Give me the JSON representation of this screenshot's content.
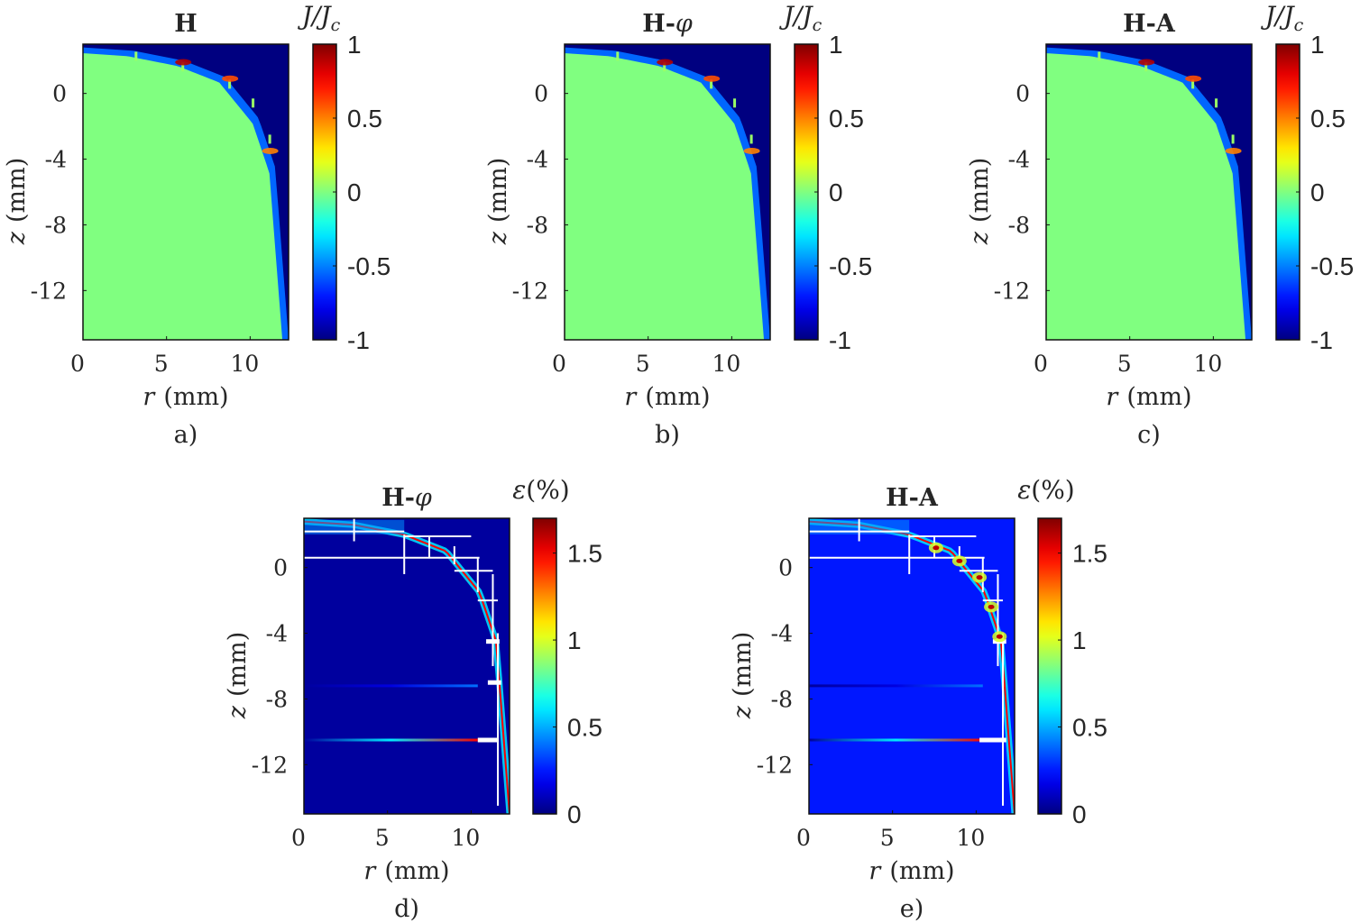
{
  "chart_data": [
    {
      "type": "heatmap",
      "panel": "a)",
      "title": "H",
      "xlabel_var": "r",
      "xlabel_unit": "(mm)",
      "ylabel_var": "z",
      "ylabel_unit": "(mm)",
      "xlim": [
        0,
        12.3
      ],
      "ylim": [
        -15,
        3
      ],
      "xticks": [
        0,
        5,
        10
      ],
      "yticks": [
        0,
        -4,
        -8,
        -12
      ],
      "colorbar_label": "J/Jc",
      "clim": [
        -1,
        1
      ],
      "cbticks": [
        "1",
        "0.5",
        "0",
        "-0.5",
        "-1"
      ],
      "colormap": "jet",
      "field": "current density; interior ≈ 0, saturated -1 along outer curved edge, small positive peaks at step corners",
      "profile_r": [
        0,
        3,
        6,
        8.5,
        10.5,
        11.5,
        12.3
      ],
      "profile_z": [
        2.8,
        2.6,
        2.0,
        1.0,
        -1.5,
        -4.5,
        -15
      ],
      "hot_spots": [
        {
          "r": 6.0,
          "z": 1.9,
          "value": 0.9
        },
        {
          "r": 8.8,
          "z": 0.9,
          "value": 0.6
        },
        {
          "r": 11.2,
          "z": -3.5,
          "value": 0.5
        }
      ]
    },
    {
      "type": "heatmap",
      "panel": "b)",
      "title": "H-φ",
      "title_base": "H-",
      "title_sym": "φ",
      "xlabel_var": "r",
      "xlabel_unit": "(mm)",
      "ylabel_var": "z",
      "ylabel_unit": "(mm)",
      "xlim": [
        0,
        12.3
      ],
      "ylim": [
        -15,
        3
      ],
      "xticks": [
        0,
        5,
        10
      ],
      "yticks": [
        0,
        -4,
        -8,
        -12
      ],
      "colorbar_label": "J/Jc",
      "clim": [
        -1,
        1
      ],
      "cbticks": [
        "1",
        "0.5",
        "0",
        "-0.5",
        "-1"
      ],
      "colormap": "jet",
      "field": "current density; interior ≈ 0, saturated -1 along outer curved edge",
      "profile_r": [
        0,
        3,
        6,
        8.5,
        10.5,
        11.5,
        12.3
      ],
      "profile_z": [
        2.8,
        2.6,
        2.0,
        1.0,
        -1.5,
        -4.5,
        -15
      ],
      "hot_spots": [
        {
          "r": 6.0,
          "z": 1.9,
          "value": 0.9
        },
        {
          "r": 8.8,
          "z": 0.9,
          "value": 0.6
        },
        {
          "r": 11.2,
          "z": -3.5,
          "value": 0.5
        }
      ]
    },
    {
      "type": "heatmap",
      "panel": "c)",
      "title": "H-A",
      "xlabel_var": "r",
      "xlabel_unit": "(mm)",
      "ylabel_var": "z",
      "ylabel_unit": "(mm)",
      "xlim": [
        0,
        12.3
      ],
      "ylim": [
        -15,
        3
      ],
      "xticks": [
        0,
        5,
        10
      ],
      "yticks": [
        0,
        -4,
        -8,
        -12
      ],
      "colorbar_label": "J/Jc",
      "clim": [
        -1,
        1
      ],
      "cbticks": [
        "1",
        "0.5",
        "0",
        "-0.5",
        "-1"
      ],
      "colormap": "jet",
      "field": "current density; interior ≈ 0, saturated -1 along outer curved edge",
      "profile_r": [
        0,
        3,
        6,
        8.5,
        10.5,
        11.5,
        12.3
      ],
      "profile_z": [
        2.8,
        2.6,
        2.0,
        1.0,
        -1.5,
        -4.5,
        -15
      ],
      "hot_spots": [
        {
          "r": 6.0,
          "z": 1.9,
          "value": 0.9
        },
        {
          "r": 8.8,
          "z": 0.9,
          "value": 0.6
        },
        {
          "r": 11.2,
          "z": -3.5,
          "value": 0.5
        }
      ]
    },
    {
      "type": "heatmap",
      "panel": "d)",
      "title": "H-φ",
      "title_base": "H-",
      "title_sym": "φ",
      "xlabel_var": "r",
      "xlabel_unit": "(mm)",
      "ylabel_var": "z",
      "ylabel_unit": "(mm)",
      "xlim": [
        0,
        12.3
      ],
      "ylim": [
        -15,
        3
      ],
      "xticks": [
        0,
        5,
        10
      ],
      "yticks": [
        0,
        -4,
        -8,
        -12
      ],
      "colorbar_label": "ε(%)",
      "clim": [
        0,
        1.7
      ],
      "cbticks": [
        "1.5",
        "1",
        "0.5",
        "0"
      ],
      "colormap": "jet",
      "field": "relative error; mostly ≈ 0, peaks near outer edge and block boundaries",
      "error_lines": [
        {
          "z": -7.2,
          "value": 0.4
        },
        {
          "z": -10.5,
          "value": 1.5
        }
      ],
      "gaps": [
        {
          "r1": 10.4,
          "r2": 11.6,
          "z": -10.5
        },
        {
          "r1": 10.9,
          "r2": 11.7,
          "z": -4.5
        },
        {
          "r1": 11.0,
          "r2": 11.8,
          "z": -7.0
        }
      ]
    },
    {
      "type": "heatmap",
      "panel": "e)",
      "title": "H-A",
      "xlabel_var": "r",
      "xlabel_unit": "(mm)",
      "ylabel_var": "z",
      "ylabel_unit": "(mm)",
      "xlim": [
        0,
        12.3
      ],
      "ylim": [
        -15,
        3
      ],
      "xticks": [
        0,
        5,
        10
      ],
      "yticks": [
        0,
        -4,
        -8,
        -12
      ],
      "colorbar_label": "ε(%)",
      "clim": [
        0,
        1.7
      ],
      "cbticks": [
        "1.5",
        "1",
        "0.5",
        "0"
      ],
      "colormap": "jet",
      "field": "relative error; mostly ≈ 0.2, peaks along outer curved edge and step corners",
      "error_lines": [
        {
          "z": -7.2,
          "value": 0.4
        },
        {
          "z": -10.5,
          "value": 1.5
        }
      ],
      "gaps": [
        {
          "r1": 10.2,
          "r2": 11.8,
          "z": -10.5
        },
        {
          "r1": 11.0,
          "r2": 11.8,
          "z": -4.5
        }
      ]
    }
  ]
}
